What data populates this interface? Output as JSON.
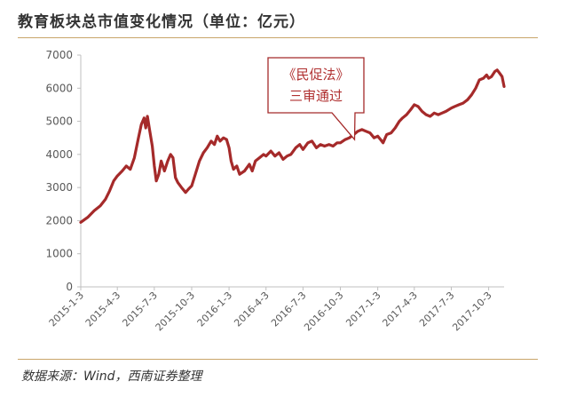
{
  "title": "教育板块总市值变化情况（单位：亿元）",
  "source": "数据来源：Wind，西南证券整理",
  "colors": {
    "series": "#a52a2a",
    "rule": "#c9a56a",
    "callout_border": "#a52a2a",
    "callout_text": "#b03030",
    "axis": "#bfbfbf",
    "text": "#595959"
  },
  "chart_data": {
    "type": "line",
    "title": "教育板块总市值变化情况（单位：亿元）",
    "xlabel": "",
    "ylabel": "",
    "ylim": [
      0,
      7000
    ],
    "yticks": [
      0,
      1000,
      2000,
      3000,
      4000,
      5000,
      6000,
      7000
    ],
    "xticks": [
      "2015-1-3",
      "2015-4-3",
      "2015-7-3",
      "2015-10-3",
      "2016-1-3",
      "2016-4-3",
      "2016-7-3",
      "2016-10-3",
      "2017-1-3",
      "2017-4-3",
      "2017-7-3",
      "2017-10-3"
    ],
    "grid": false,
    "legend": "none",
    "series": [
      {
        "values": [
          [
            "2015-01-03",
            1950
          ],
          [
            "2015-01-20",
            2100
          ],
          [
            "2015-02-05",
            2300
          ],
          [
            "2015-02-20",
            2450
          ],
          [
            "2015-03-05",
            2650
          ],
          [
            "2015-03-15",
            2900
          ],
          [
            "2015-03-25",
            3200
          ],
          [
            "2015-04-03",
            3350
          ],
          [
            "2015-04-15",
            3500
          ],
          [
            "2015-04-25",
            3650
          ],
          [
            "2015-05-05",
            3550
          ],
          [
            "2015-05-15",
            3900
          ],
          [
            "2015-05-25",
            4500
          ],
          [
            "2015-06-01",
            4900
          ],
          [
            "2015-06-08",
            5100
          ],
          [
            "2015-06-12",
            4800
          ],
          [
            "2015-06-16",
            5150
          ],
          [
            "2015-06-22",
            4700
          ],
          [
            "2015-06-28",
            4250
          ],
          [
            "2015-07-03",
            3650
          ],
          [
            "2015-07-08",
            3200
          ],
          [
            "2015-07-14",
            3400
          ],
          [
            "2015-07-20",
            3800
          ],
          [
            "2015-07-28",
            3500
          ],
          [
            "2015-08-05",
            3800
          ],
          [
            "2015-08-12",
            4000
          ],
          [
            "2015-08-18",
            3900
          ],
          [
            "2015-08-24",
            3300
          ],
          [
            "2015-08-30",
            3150
          ],
          [
            "2015-09-08",
            3000
          ],
          [
            "2015-09-18",
            2850
          ],
          [
            "2015-09-25",
            2950
          ],
          [
            "2015-10-03",
            3050
          ],
          [
            "2015-10-12",
            3400
          ],
          [
            "2015-10-22",
            3800
          ],
          [
            "2015-11-01",
            4050
          ],
          [
            "2015-11-10",
            4200
          ],
          [
            "2015-11-20",
            4400
          ],
          [
            "2015-11-28",
            4300
          ],
          [
            "2015-12-05",
            4550
          ],
          [
            "2015-12-12",
            4400
          ],
          [
            "2015-12-20",
            4500
          ],
          [
            "2015-12-28",
            4450
          ],
          [
            "2016-01-03",
            4200
          ],
          [
            "2016-01-08",
            3800
          ],
          [
            "2016-01-14",
            3550
          ],
          [
            "2016-01-22",
            3650
          ],
          [
            "2016-01-29",
            3400
          ],
          [
            "2016-02-10",
            3500
          ],
          [
            "2016-02-22",
            3700
          ],
          [
            "2016-02-29",
            3500
          ],
          [
            "2016-03-08",
            3800
          ],
          [
            "2016-03-18",
            3900
          ],
          [
            "2016-03-28",
            4000
          ],
          [
            "2016-04-03",
            3950
          ],
          [
            "2016-04-15",
            4100
          ],
          [
            "2016-04-25",
            3950
          ],
          [
            "2016-05-05",
            4050
          ],
          [
            "2016-05-15",
            3850
          ],
          [
            "2016-05-25",
            3950
          ],
          [
            "2016-06-03",
            4000
          ],
          [
            "2016-06-15",
            4200
          ],
          [
            "2016-06-25",
            4300
          ],
          [
            "2016-07-03",
            4150
          ],
          [
            "2016-07-15",
            4350
          ],
          [
            "2016-07-25",
            4400
          ],
          [
            "2016-08-05",
            4200
          ],
          [
            "2016-08-15",
            4300
          ],
          [
            "2016-08-25",
            4250
          ],
          [
            "2016-09-05",
            4300
          ],
          [
            "2016-09-15",
            4250
          ],
          [
            "2016-09-25",
            4350
          ],
          [
            "2016-10-03",
            4350
          ],
          [
            "2016-10-15",
            4450
          ],
          [
            "2016-10-25",
            4500
          ],
          [
            "2016-11-05",
            4600
          ],
          [
            "2016-11-15",
            4700
          ],
          [
            "2016-11-25",
            4750
          ],
          [
            "2016-12-05",
            4700
          ],
          [
            "2016-12-15",
            4650
          ],
          [
            "2016-12-25",
            4500
          ],
          [
            "2017-01-03",
            4550
          ],
          [
            "2017-01-10",
            4450
          ],
          [
            "2017-01-16",
            4350
          ],
          [
            "2017-01-25",
            4600
          ],
          [
            "2017-02-05",
            4650
          ],
          [
            "2017-02-15",
            4800
          ],
          [
            "2017-02-25",
            5000
          ],
          [
            "2017-03-05",
            5100
          ],
          [
            "2017-03-15",
            5200
          ],
          [
            "2017-03-25",
            5350
          ],
          [
            "2017-04-03",
            5500
          ],
          [
            "2017-04-12",
            5450
          ],
          [
            "2017-04-22",
            5300
          ],
          [
            "2017-05-02",
            5200
          ],
          [
            "2017-05-12",
            5150
          ],
          [
            "2017-05-22",
            5250
          ],
          [
            "2017-06-01",
            5200
          ],
          [
            "2017-06-10",
            5250
          ],
          [
            "2017-06-20",
            5300
          ],
          [
            "2017-07-03",
            5400
          ],
          [
            "2017-07-12",
            5450
          ],
          [
            "2017-07-22",
            5500
          ],
          [
            "2017-08-01",
            5550
          ],
          [
            "2017-08-12",
            5650
          ],
          [
            "2017-08-22",
            5800
          ],
          [
            "2017-09-01",
            6000
          ],
          [
            "2017-09-10",
            6250
          ],
          [
            "2017-09-20",
            6300
          ],
          [
            "2017-09-28",
            6400
          ],
          [
            "2017-10-03",
            6300
          ],
          [
            "2017-10-10",
            6350
          ],
          [
            "2017-10-18",
            6500
          ],
          [
            "2017-10-24",
            6550
          ],
          [
            "2017-10-30",
            6450
          ],
          [
            "2017-11-05",
            6350
          ],
          [
            "2017-11-10",
            6050
          ]
        ]
      }
    ],
    "annotations": [
      {
        "lines": [
          "《民促法》",
          "三审通过"
        ],
        "x": "2016-11-07",
        "y": 4450
      }
    ]
  }
}
